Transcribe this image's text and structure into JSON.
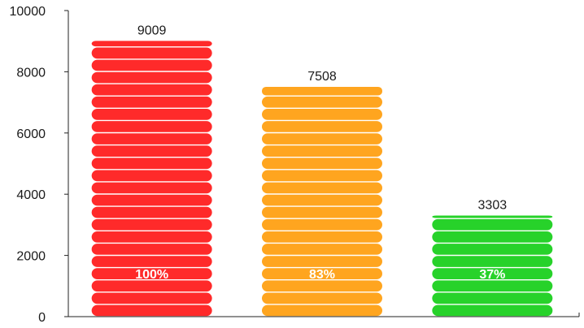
{
  "chart_data": {
    "type": "bar",
    "title": "",
    "xlabel": "",
    "ylabel": "",
    "ylim": [
      0,
      10000
    ],
    "yticks": [
      0,
      2000,
      4000,
      6000,
      8000,
      10000
    ],
    "categories": [
      "",
      "",
      ""
    ],
    "values": [
      9009,
      7508,
      3303
    ],
    "value_labels": [
      "9009",
      "7508",
      "3303"
    ],
    "percent_labels": [
      "100%",
      "83%",
      "37%"
    ],
    "percent_values": [
      100,
      83,
      37
    ],
    "bar_colors": [
      "#ff2a2a",
      "#ffa51f",
      "#27d22a"
    ],
    "bar_style": "stacked-rounded-segments",
    "grid": false,
    "legend": "none"
  }
}
